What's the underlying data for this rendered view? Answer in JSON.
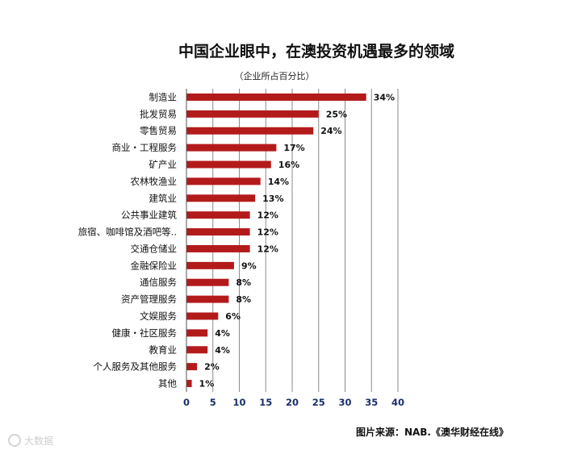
{
  "chart_data": {
    "type": "bar",
    "orientation": "horizontal",
    "title": "中国企业眼中，在澳投资机遇最多的领域",
    "subtitle": "（企业所占百分比）",
    "categories": [
      "制造业",
      "批发贸易",
      "零售贸易",
      "商业・工程服务",
      "矿产业",
      "农林牧渔业",
      "建筑业",
      "公共事业建筑",
      "旅宿、咖啡馆及酒吧等..",
      "交通仓储业",
      "金融保险业",
      "通信服务",
      "资产管理服务",
      "文娱服务",
      "健康・社区服务",
      "教育业",
      "个人服务及其他服务",
      "其他"
    ],
    "values": [
      34,
      25,
      24,
      17,
      16,
      14,
      13,
      12,
      12,
      12,
      9,
      8,
      8,
      6,
      4,
      4,
      2,
      1
    ],
    "value_labels": [
      "34%",
      "25%",
      "24%",
      "17%",
      "16%",
      "14%",
      "13%",
      "12%",
      "12%",
      "12%",
      "9%",
      "8%",
      "8%",
      "6%",
      "4%",
      "4%",
      "2%",
      "1%"
    ],
    "x_ticks": [
      "0",
      "5",
      "10",
      "15",
      "20",
      "25",
      "30",
      "35",
      "40"
    ],
    "xlim": [
      0,
      40
    ],
    "grid": true,
    "bar_color": "#b31b1b",
    "tick_color": "#1a2f6b"
  },
  "source": "图片来源：NAB.《澳华财经在线》",
  "watermark": "大数据"
}
